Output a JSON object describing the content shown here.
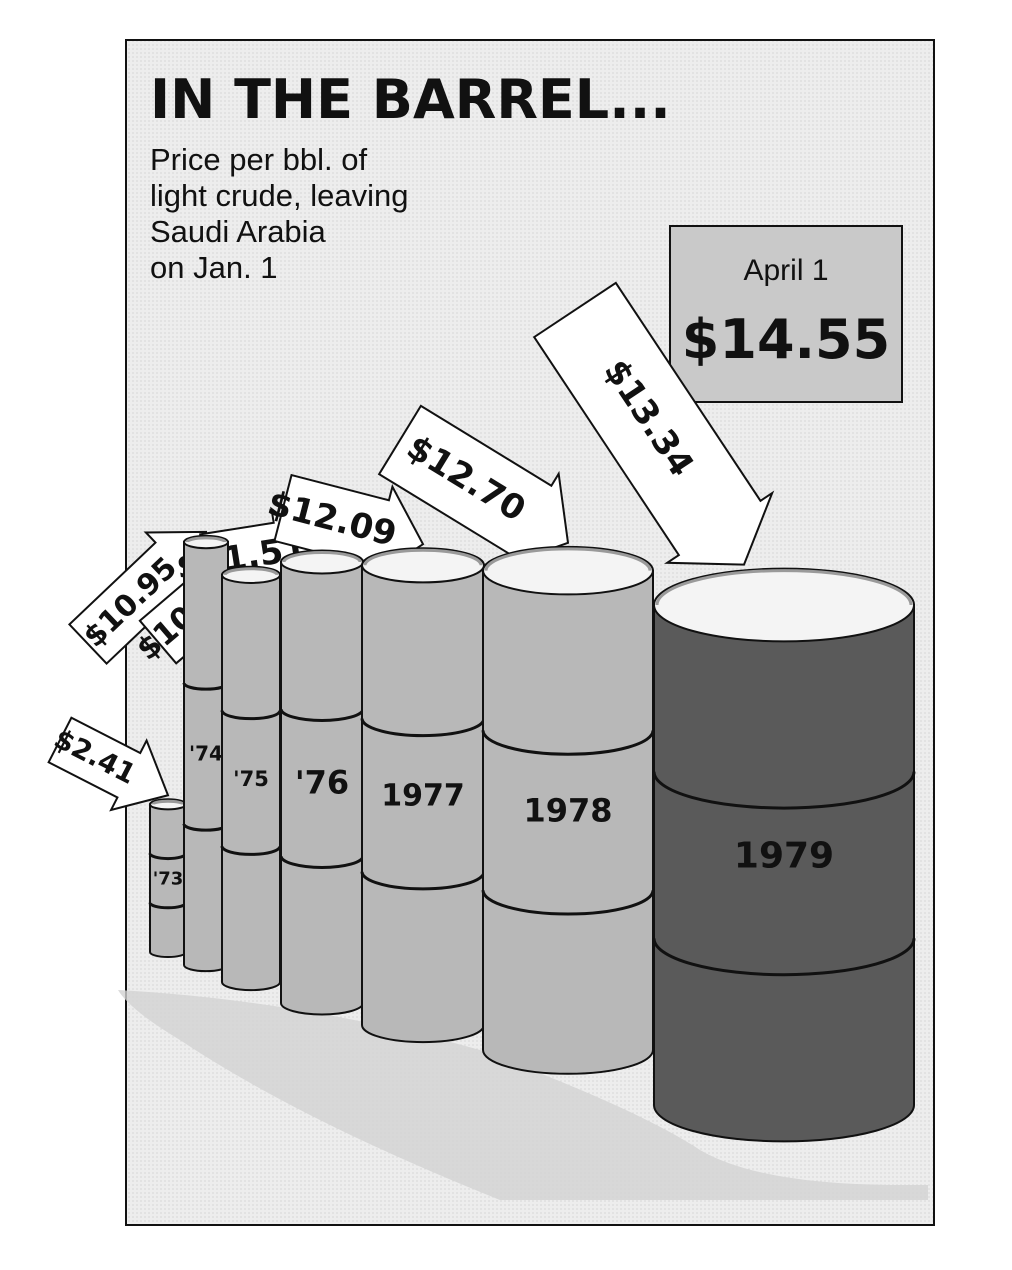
{
  "chart_data": {
    "type": "bar",
    "title": "IN THE BARREL...",
    "subtitle_lines": [
      "Price per bbl. of",
      "light crude, leaving",
      "Saudi Arabia",
      "on Jan. 1"
    ],
    "unit": "$ per bbl.",
    "categories": [
      "'73",
      "'74",
      "'75",
      "'76",
      "1977",
      "1978",
      "1979"
    ],
    "values": [
      2.41,
      10.95,
      10.46,
      11.51,
      12.09,
      12.7,
      13.34
    ],
    "value_labels": [
      "$2.41",
      "$10.95",
      "$10.46",
      "$11.51",
      "$12.09",
      "$12.70",
      "$13.34"
    ],
    "callout": {
      "label": "April 1",
      "value": 14.55,
      "value_label": "$14.55"
    },
    "colors": {
      "barrel": "#b8b8b8",
      "barrel_last": "#5a5a5a",
      "ink": "#111111",
      "panel": "#ebebeb",
      "callout_box": "#c9c9c9"
    }
  }
}
